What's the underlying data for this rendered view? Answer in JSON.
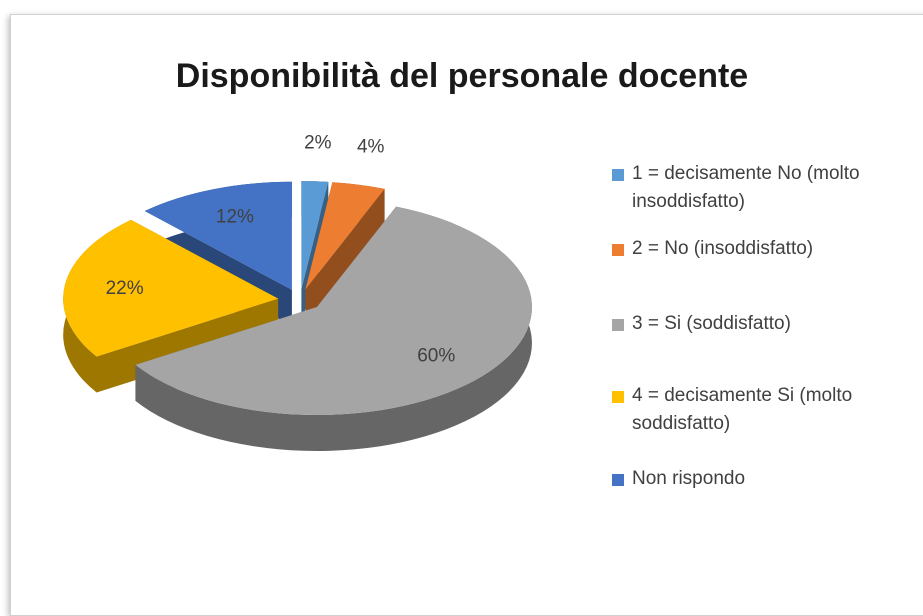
{
  "chart_data": {
    "type": "pie",
    "title": "Disponibilità del personale docente",
    "categories": [
      "1 = decisamente No (molto insoddisfatto)",
      "2 = No (insoddisfatto)",
      "3 = Si (soddisfatto)",
      "4 = decisamente Si (molto soddisfatto)",
      "Non rispondo"
    ],
    "values": [
      2,
      4,
      60,
      22,
      12
    ],
    "value_labels": [
      "2%",
      "4%",
      "60%",
      "22%",
      "12%"
    ],
    "colors": [
      "#5b9bd5",
      "#ed7d31",
      "#a5a5a5",
      "#ffc000",
      "#4472c4"
    ],
    "legend": "right"
  }
}
